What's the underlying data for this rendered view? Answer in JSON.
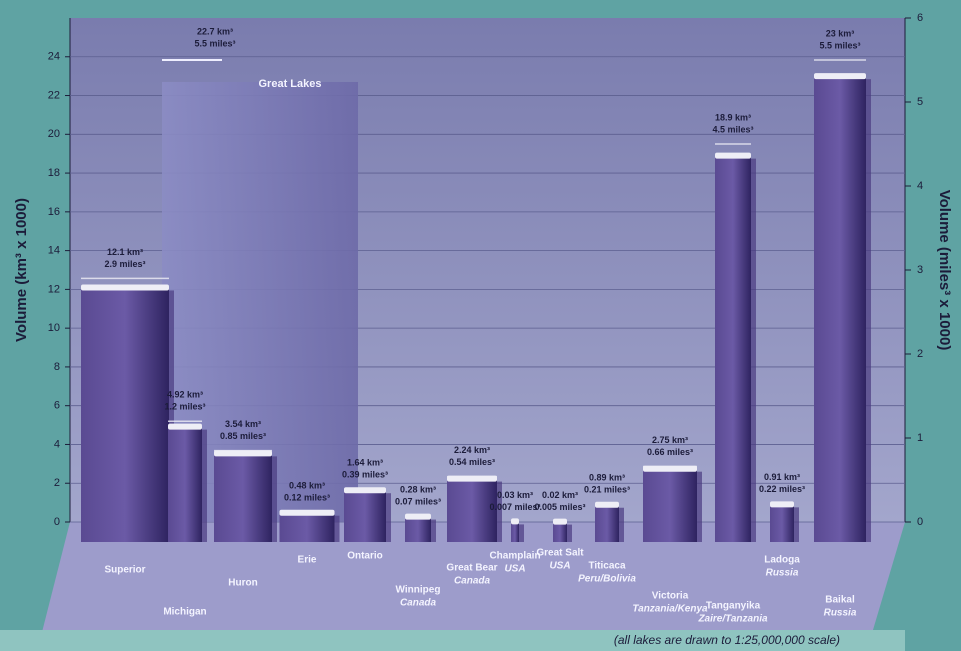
{
  "chart_data": {
    "type": "bar",
    "categories": [
      "Superior",
      "Michigan",
      "Huron",
      "Erie",
      "Ontario",
      "Winnipeg",
      "Great Bear",
      "Champlain",
      "Great Salt",
      "Titicaca",
      "Victoria",
      "Tanganyika",
      "Ladoga",
      "Baikal"
    ],
    "regions": [
      null,
      null,
      null,
      null,
      null,
      "Canada",
      "Canada",
      "USA",
      "USA",
      "Peru/Bolivia",
      "Tanzania/Kenya",
      "Zaire/Tanzania",
      "Russia",
      "Russia"
    ],
    "series": [
      {
        "name": "km³",
        "color": "#4a3a80",
        "values": [
          12.1,
          4.92,
          3.54,
          0.48,
          1.64,
          0.28,
          2.24,
          0.03,
          0.02,
          0.89,
          2.75,
          18.9,
          0.91,
          23
        ],
        "value_labels": [
          "12.1 km³",
          "4.92 km³",
          "3.54 km³",
          "0.48 km³",
          "1.64 km³",
          "0.28 km³",
          "2.24 km³",
          "0.03 km³",
          "0.02 km³",
          "0.89 km³",
          "2.75 km³",
          "18.9 km³",
          "0.91 km³",
          "23 km³"
        ]
      },
      {
        "name": "miles³",
        "color": "#4a3a80",
        "axis": "y2",
        "values": [
          2.9,
          1.2,
          0.85,
          0.12,
          0.39,
          0.07,
          0.54,
          0.007,
          0.005,
          0.21,
          0.66,
          4.5,
          0.22,
          5.5
        ],
        "value_labels": [
          "2.9 miles³",
          "1.2 miles³",
          "0.85 miles³",
          "0.12 miles³",
          "0.39 miles³",
          "0.07 miles³",
          "0.54 miles³",
          "0.007 miles³",
          "0.005 miles³",
          "0.21 miles³",
          "0.66 miles³",
          "4.5 miles³",
          "0.22 miles³",
          "5.5 miles³"
        ]
      }
    ],
    "group": {
      "name": "Great Lakes",
      "value": 22.7,
      "value_label": "22.7 km³",
      "value_y2": 5.5,
      "value_y2_label": "5.5 miles³"
    },
    "y_label": "Volume (km³ x 1000)",
    "y2_label": "Volume (miles³ x 1000)",
    "ylim": [
      0,
      26
    ],
    "yticks": [
      0,
      2,
      4,
      6,
      8,
      10,
      12,
      14,
      16,
      18,
      20,
      22,
      24
    ],
    "y2lim": [
      0,
      6
    ],
    "y2ticks": [
      0,
      1,
      2,
      3,
      4,
      5,
      6
    ],
    "grid": true,
    "note": "(all lakes are drawn to 1:25,000,000 scale)"
  }
}
